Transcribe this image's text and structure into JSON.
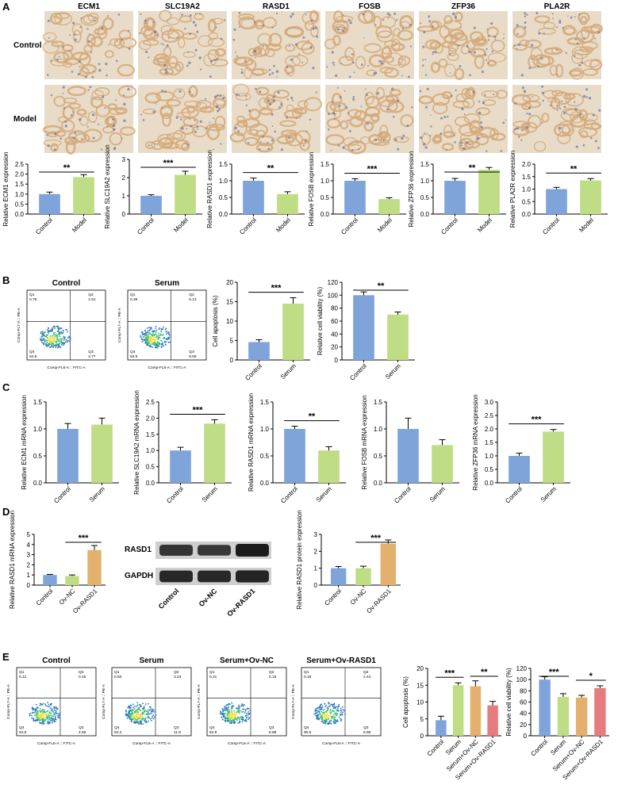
{
  "colors": {
    "blue": "#7fa4d9",
    "green": "#bedd84",
    "orange": "#e3b06d",
    "red": "#e67c7f",
    "tissue_stain": "#d4a878",
    "tissue_bg": "#e8dcc8",
    "nuclei": "#6a6fa0",
    "dot_low": "#2a7ab8",
    "dot_mid": "#40c070",
    "dot_high": "#f0e040"
  },
  "panel_labels": {
    "a": "A",
    "b": "B",
    "c": "C",
    "d": "D",
    "e": "E"
  },
  "ihc": {
    "genes": [
      "ECM1",
      "SLC19A2",
      "RASD1",
      "FOSB",
      "ZFP36",
      "PLA2R"
    ],
    "rows": [
      "Control",
      "Model"
    ]
  },
  "flow_axes": {
    "x": "Comp-FL6-A :: FITC-A",
    "y": "Comp-FL7-A :: PE-A",
    "quadrants": [
      "Q1",
      "Q2",
      "Q3",
      "Q4"
    ]
  },
  "flow_b": [
    {
      "title": "Control",
      "q1": "0.78",
      "q2": "1.61",
      "q3": "2.77",
      "q4": "94.8"
    },
    {
      "title": "Serum",
      "q1": "0.39",
      "q2": "5.13",
      "q3": "9.59",
      "q4": "84.9"
    }
  ],
  "flow_e": [
    {
      "title": "Control",
      "q1": "0.12",
      "q2": "0.45",
      "q3": "4.59",
      "q4": "94.8"
    },
    {
      "title": "Serum",
      "q1": "0.50",
      "q2": "3.23",
      "q3": "11.8",
      "q4": "84.4"
    },
    {
      "title": "Serum+Ov-NC",
      "q1": "0.21",
      "q2": "5.15",
      "q3": "8.88",
      "q4": "84.8"
    },
    {
      "title": "Serum+Ov-RASD1",
      "q1": "0.18",
      "q2": "2.44",
      "q3": "6.98",
      "q4": "90.5"
    }
  ],
  "western_blot": {
    "bands": [
      "RASD1",
      "GAPDH"
    ],
    "lanes": [
      "Control",
      "Ov-NC",
      "Ov-RASD1"
    ],
    "intensity": {
      "RASD1": [
        0.75,
        0.7,
        1.0
      ],
      "GAPDH": [
        0.85,
        0.85,
        0.9
      ]
    }
  },
  "chart_data": [
    {
      "id": "a1",
      "type": "bar",
      "ylabel": "Relative ECM1 expression",
      "categories": [
        "Control",
        "Model"
      ],
      "values": [
        1.0,
        1.85
      ],
      "errors": [
        0.1,
        0.12
      ],
      "ylim": [
        0,
        2.5
      ],
      "ticks": [
        0.0,
        0.5,
        1.0,
        1.5,
        2.0,
        2.5
      ],
      "decimals": 1,
      "colors": [
        "blue",
        "green"
      ],
      "sig": [
        {
          "from": 0,
          "to": 1,
          "label": "**"
        }
      ]
    },
    {
      "id": "a2",
      "type": "bar",
      "ylabel": "Relative SLC19A2 expression",
      "categories": [
        "Control",
        "Model"
      ],
      "values": [
        1.0,
        2.15
      ],
      "errors": [
        0.06,
        0.2
      ],
      "ylim": [
        0,
        3
      ],
      "ticks": [
        0,
        1,
        2,
        3
      ],
      "decimals": 0,
      "colors": [
        "blue",
        "green"
      ],
      "sig": [
        {
          "from": 0,
          "to": 1,
          "label": "***"
        }
      ]
    },
    {
      "id": "a3",
      "type": "bar",
      "ylabel": "Relative RASD1 expression",
      "categories": [
        "Control",
        "Model"
      ],
      "values": [
        1.0,
        0.6
      ],
      "errors": [
        0.08,
        0.07
      ],
      "ylim": [
        0,
        1.5
      ],
      "ticks": [
        0.0,
        0.5,
        1.0,
        1.5
      ],
      "decimals": 1,
      "colors": [
        "blue",
        "green"
      ],
      "sig": [
        {
          "from": 0,
          "to": 1,
          "label": "**"
        }
      ]
    },
    {
      "id": "a4",
      "type": "bar",
      "ylabel": "Relative FOSB expression",
      "categories": [
        "Control",
        "Model"
      ],
      "values": [
        1.0,
        0.45
      ],
      "errors": [
        0.06,
        0.04
      ],
      "ylim": [
        0,
        1.5
      ],
      "ticks": [
        0.0,
        0.5,
        1.0,
        1.5
      ],
      "decimals": 1,
      "colors": [
        "blue",
        "green"
      ],
      "sig": [
        {
          "from": 0,
          "to": 1,
          "label": "***"
        }
      ]
    },
    {
      "id": "a5",
      "type": "bar",
      "ylabel": "Relative ZFP36 expression",
      "categories": [
        "Control",
        "Model"
      ],
      "values": [
        1.0,
        1.33
      ],
      "errors": [
        0.07,
        0.07
      ],
      "ylim": [
        0,
        1.5
      ],
      "ticks": [
        0.0,
        0.5,
        1.0,
        1.5
      ],
      "decimals": 1,
      "colors": [
        "blue",
        "green"
      ],
      "sig": [
        {
          "from": 0,
          "to": 1,
          "label": "**"
        }
      ]
    },
    {
      "id": "a6",
      "type": "bar",
      "ylabel": "Relative PLA2R expression",
      "categories": [
        "Control",
        "Model"
      ],
      "values": [
        1.0,
        1.35
      ],
      "errors": [
        0.07,
        0.07
      ],
      "ylim": [
        0,
        2.0
      ],
      "ticks": [
        0.0,
        0.5,
        1.0,
        1.5,
        2.0
      ],
      "decimals": 1,
      "colors": [
        "blue",
        "green"
      ],
      "sig": [
        {
          "from": 0,
          "to": 1,
          "label": "**"
        }
      ]
    },
    {
      "id": "b1",
      "type": "bar",
      "ylabel": "Cell apoptosis (%)",
      "categories": [
        "Control",
        "Serum"
      ],
      "values": [
        4.6,
        14.5
      ],
      "errors": [
        0.6,
        1.5
      ],
      "ylim": [
        0,
        20
      ],
      "ticks": [
        0,
        5,
        10,
        15,
        20
      ],
      "decimals": 0,
      "colors": [
        "blue",
        "green"
      ],
      "sig": [
        {
          "from": 0,
          "to": 1,
          "label": "***"
        }
      ]
    },
    {
      "id": "b2",
      "type": "bar",
      "ylabel": "Relative cell viability (%)",
      "categories": [
        "Control",
        "Serum"
      ],
      "values": [
        100,
        70
      ],
      "errors": [
        5,
        4
      ],
      "ylim": [
        0,
        120
      ],
      "ticks": [
        0,
        20,
        40,
        60,
        80,
        100,
        120
      ],
      "decimals": 0,
      "colors": [
        "blue",
        "green"
      ],
      "sig": [
        {
          "from": 0,
          "to": 1,
          "label": "**"
        }
      ]
    },
    {
      "id": "c1",
      "type": "bar",
      "ylabel": "Relative ECM1 mRNA expression",
      "categories": [
        "Control",
        "Serum"
      ],
      "values": [
        1.0,
        1.08
      ],
      "errors": [
        0.1,
        0.12
      ],
      "ylim": [
        0,
        1.5
      ],
      "ticks": [
        0.0,
        0.5,
        1.0,
        1.5
      ],
      "decimals": 1,
      "colors": [
        "blue",
        "green"
      ],
      "sig": []
    },
    {
      "id": "c2",
      "type": "bar",
      "ylabel": "Relative SLC19A2 mRNA expression",
      "categories": [
        "Control",
        "Serum"
      ],
      "values": [
        1.0,
        1.83
      ],
      "errors": [
        0.1,
        0.12
      ],
      "ylim": [
        0,
        2.5
      ],
      "ticks": [
        0.0,
        0.5,
        1.0,
        1.5,
        2.0,
        2.5
      ],
      "decimals": 1,
      "colors": [
        "blue",
        "green"
      ],
      "sig": [
        {
          "from": 0,
          "to": 1,
          "label": "***"
        }
      ]
    },
    {
      "id": "c3",
      "type": "bar",
      "ylabel": "Relative RASD1 mRNA expression",
      "categories": [
        "Control",
        "Serum"
      ],
      "values": [
        1.0,
        0.6
      ],
      "errors": [
        0.05,
        0.07
      ],
      "ylim": [
        0,
        1.5
      ],
      "ticks": [
        0.0,
        0.5,
        1.0,
        1.5
      ],
      "decimals": 1,
      "colors": [
        "blue",
        "green"
      ],
      "sig": [
        {
          "from": 0,
          "to": 1,
          "label": "**"
        }
      ]
    },
    {
      "id": "c4",
      "type": "bar",
      "ylabel": "Relative FOSB mRNA expression",
      "categories": [
        "Control",
        "Serum"
      ],
      "values": [
        1.0,
        0.7
      ],
      "errors": [
        0.2,
        0.1
      ],
      "ylim": [
        0,
        1.5
      ],
      "ticks": [
        0.0,
        0.5,
        1.0,
        1.5
      ],
      "decimals": 1,
      "colors": [
        "blue",
        "green"
      ],
      "sig": []
    },
    {
      "id": "c5",
      "type": "bar",
      "ylabel": "Relative ZFP36 mRNA expression",
      "categories": [
        "Control",
        "Serum"
      ],
      "values": [
        1.0,
        1.9
      ],
      "errors": [
        0.1,
        0.08
      ],
      "ylim": [
        0,
        3.0
      ],
      "ticks": [
        0.0,
        0.5,
        1.0,
        1.5,
        2.0,
        2.5,
        3.0
      ],
      "decimals": 1,
      "colors": [
        "blue",
        "green"
      ],
      "sig": [
        {
          "from": 0,
          "to": 1,
          "label": "***"
        }
      ]
    },
    {
      "id": "d1",
      "type": "bar",
      "ylabel": "Relative RASD1 mRNA expression",
      "categories": [
        "Control",
        "Ov-NC",
        "Ov-RASD1"
      ],
      "values": [
        1.0,
        0.9,
        3.45
      ],
      "errors": [
        0.05,
        0.1,
        0.45
      ],
      "ylim": [
        0,
        5
      ],
      "ticks": [
        0,
        1,
        2,
        3,
        4,
        5
      ],
      "decimals": 0,
      "colors": [
        "blue",
        "green",
        "orange"
      ],
      "sig": [
        {
          "from": 1,
          "to": 2,
          "label": "***"
        }
      ]
    },
    {
      "id": "d2",
      "type": "bar",
      "ylabel": "Relative RASD1 protein expression",
      "categories": [
        "Control",
        "Ov-NC",
        "Ov-RASD1"
      ],
      "values": [
        1.0,
        1.0,
        2.45
      ],
      "errors": [
        0.1,
        0.12,
        0.22
      ],
      "ylim": [
        0,
        3
      ],
      "ticks": [
        0,
        1,
        2,
        3
      ],
      "decimals": 0,
      "colors": [
        "blue",
        "green",
        "orange"
      ],
      "sig": [
        {
          "from": 1,
          "to": 2,
          "label": "***"
        }
      ]
    },
    {
      "id": "e1",
      "type": "bar",
      "ylabel": "Cell apoptosis (%)",
      "categories": [
        "Control",
        "Serum",
        "Serum+Ov-NC",
        "Serum+Ov-RASD1"
      ],
      "values": [
        4.6,
        15.0,
        14.7,
        9.0
      ],
      "errors": [
        1.2,
        0.7,
        1.6,
        1.2
      ],
      "ylim": [
        0,
        20
      ],
      "ticks": [
        0,
        5,
        10,
        15,
        20
      ],
      "decimals": 0,
      "colors": [
        "blue",
        "green",
        "orange",
        "red"
      ],
      "sig": [
        {
          "from": 0,
          "to": 1,
          "label": "***"
        },
        {
          "from": 2,
          "to": 3,
          "label": "**"
        }
      ]
    },
    {
      "id": "e2",
      "type": "bar",
      "ylabel": "Relative cell viability (%)",
      "categories": [
        "Control",
        "Serum",
        "Serum+Ov-NC",
        "Serum+Ov-RASD1"
      ],
      "values": [
        100,
        69,
        68,
        85
      ],
      "errors": [
        5,
        6,
        4,
        4
      ],
      "ylim": [
        0,
        120
      ],
      "ticks": [
        0,
        20,
        40,
        60,
        80,
        100,
        120
      ],
      "decimals": 0,
      "colors": [
        "blue",
        "green",
        "orange",
        "red"
      ],
      "sig": [
        {
          "from": 0,
          "to": 1,
          "label": "***"
        },
        {
          "from": 2,
          "to": 3,
          "label": "*"
        }
      ]
    }
  ]
}
